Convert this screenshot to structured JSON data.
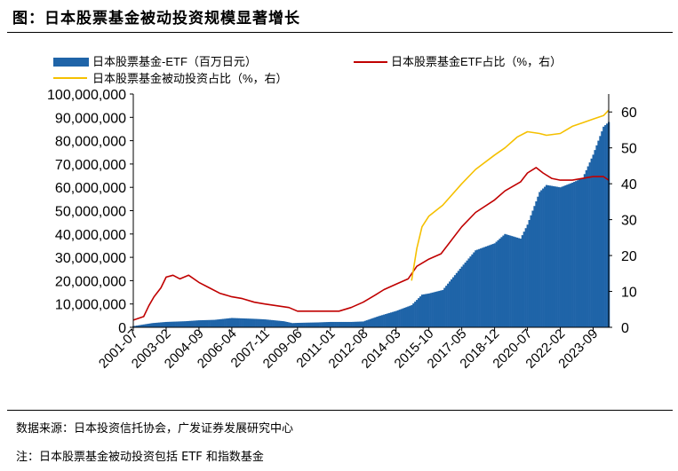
{
  "header": {
    "title": "图：日本股票基金被动投资规模显著增长"
  },
  "footer": {
    "source": "数据来源：日本投资信托协会，广发证券发展研究中心",
    "note": "注：日本股票基金被动投资包括 ETF 和指数基金"
  },
  "colors": {
    "bar": "#1f64a8",
    "red_line": "#c00000",
    "yellow_line": "#f5c000"
  },
  "chart_data": {
    "type": "bar",
    "x_tick_labels": [
      "2001-07",
      "2003-02",
      "2004-09",
      "2006-04",
      "2007-11",
      "2009-06",
      "2011-01",
      "2012-08",
      "2014-03",
      "2015-10",
      "2017-05",
      "2018-12",
      "2020-07",
      "2022-02",
      "2023-09"
    ],
    "x_range": [
      "2001-07",
      "2024-06"
    ],
    "y_left": {
      "ticks": [
        "0",
        "10,000,000",
        "20,000,000",
        "30,000,000",
        "40,000,000",
        "50,000,000",
        "60,000,000",
        "70,000,000",
        "80,000,000",
        "90,000,000",
        "100,000,000"
      ],
      "lim": [
        0,
        100000000
      ]
    },
    "y_right": {
      "ticks": [
        "0",
        "10",
        "20",
        "30",
        "40",
        "50",
        "60"
      ],
      "lim": [
        0,
        65
      ]
    },
    "legend": {
      "placement": "top"
    },
    "series": [
      {
        "name": "日本股票基金-ETF（百万日元）",
        "kind": "bar",
        "axis": "left",
        "points": [
          [
            "2001-07",
            500000
          ],
          [
            "2002-06",
            1800000
          ],
          [
            "2003-02",
            2300000
          ],
          [
            "2004-01",
            2600000
          ],
          [
            "2004-09",
            3000000
          ],
          [
            "2005-06",
            3200000
          ],
          [
            "2006-04",
            4000000
          ],
          [
            "2007-06",
            3600000
          ],
          [
            "2007-11",
            3400000
          ],
          [
            "2008-10",
            2600000
          ],
          [
            "2009-03",
            1800000
          ],
          [
            "2009-06",
            1900000
          ],
          [
            "2010-06",
            2100000
          ],
          [
            "2011-01",
            2300000
          ],
          [
            "2012-01",
            2300000
          ],
          [
            "2012-08",
            2500000
          ],
          [
            "2013-05",
            4800000
          ],
          [
            "2014-03",
            7000000
          ],
          [
            "2014-12",
            9500000
          ],
          [
            "2015-06",
            14000000
          ],
          [
            "2015-10",
            14500000
          ],
          [
            "2016-06",
            16000000
          ],
          [
            "2017-05",
            26000000
          ],
          [
            "2018-01",
            33000000
          ],
          [
            "2018-12",
            36000000
          ],
          [
            "2019-06",
            40000000
          ],
          [
            "2020-03",
            38000000
          ],
          [
            "2020-07",
            44000000
          ],
          [
            "2021-02",
            58000000
          ],
          [
            "2021-06",
            61000000
          ],
          [
            "2022-02",
            60000000
          ],
          [
            "2022-09",
            62000000
          ],
          [
            "2023-03",
            64000000
          ],
          [
            "2023-09",
            74000000
          ],
          [
            "2024-03",
            86000000
          ],
          [
            "2024-06",
            88000000
          ]
        ]
      },
      {
        "name": "日本股票基金ETF占比（%，右）",
        "kind": "line",
        "axis": "right",
        "points": [
          [
            "2001-07",
            2
          ],
          [
            "2002-01",
            3
          ],
          [
            "2002-04",
            6
          ],
          [
            "2002-07",
            8.5
          ],
          [
            "2002-11",
            11
          ],
          [
            "2003-02",
            14
          ],
          [
            "2003-06",
            14.5
          ],
          [
            "2003-10",
            13.5
          ],
          [
            "2004-03",
            14.5
          ],
          [
            "2004-09",
            12.5
          ],
          [
            "2005-03",
            11
          ],
          [
            "2005-09",
            9.5
          ],
          [
            "2006-04",
            8.5
          ],
          [
            "2006-10",
            8
          ],
          [
            "2007-05",
            7
          ],
          [
            "2007-11",
            6.5
          ],
          [
            "2008-06",
            6
          ],
          [
            "2009-01",
            5.5
          ],
          [
            "2009-06",
            4.5
          ],
          [
            "2010-01",
            4.5
          ],
          [
            "2010-06",
            4.5
          ],
          [
            "2011-01",
            4.5
          ],
          [
            "2011-06",
            4.5
          ],
          [
            "2012-01",
            5.5
          ],
          [
            "2012-08",
            7
          ],
          [
            "2013-03",
            9
          ],
          [
            "2013-08",
            10.5
          ],
          [
            "2014-03",
            12
          ],
          [
            "2014-10",
            13.5
          ],
          [
            "2015-03",
            17
          ],
          [
            "2015-10",
            19
          ],
          [
            "2016-05",
            20.5
          ],
          [
            "2017-05",
            28
          ],
          [
            "2018-01",
            32
          ],
          [
            "2018-12",
            35.5
          ],
          [
            "2019-06",
            38
          ],
          [
            "2020-03",
            40.5
          ],
          [
            "2020-07",
            43
          ],
          [
            "2020-12",
            44.5
          ],
          [
            "2021-04",
            43
          ],
          [
            "2021-09",
            41.5
          ],
          [
            "2022-02",
            41
          ],
          [
            "2022-09",
            41
          ],
          [
            "2023-03",
            41.5
          ],
          [
            "2023-09",
            42
          ],
          [
            "2024-03",
            42
          ],
          [
            "2024-06",
            41
          ]
        ]
      },
      {
        "name": "日本股票基金被动投资占比（%，右）",
        "kind": "line",
        "axis": "right",
        "points": [
          [
            "2014-12",
            13
          ],
          [
            "2015-03",
            22
          ],
          [
            "2015-06",
            28
          ],
          [
            "2015-10",
            31
          ],
          [
            "2016-06",
            34
          ],
          [
            "2017-05",
            40
          ],
          [
            "2018-01",
            44
          ],
          [
            "2018-12",
            48
          ],
          [
            "2019-06",
            50
          ],
          [
            "2020-01",
            53
          ],
          [
            "2020-07",
            54.5
          ],
          [
            "2021-02",
            54
          ],
          [
            "2021-06",
            53.5
          ],
          [
            "2022-02",
            54
          ],
          [
            "2022-09",
            56
          ],
          [
            "2023-03",
            57
          ],
          [
            "2023-09",
            58
          ],
          [
            "2024-03",
            59
          ],
          [
            "2024-06",
            60.5
          ]
        ]
      }
    ]
  }
}
